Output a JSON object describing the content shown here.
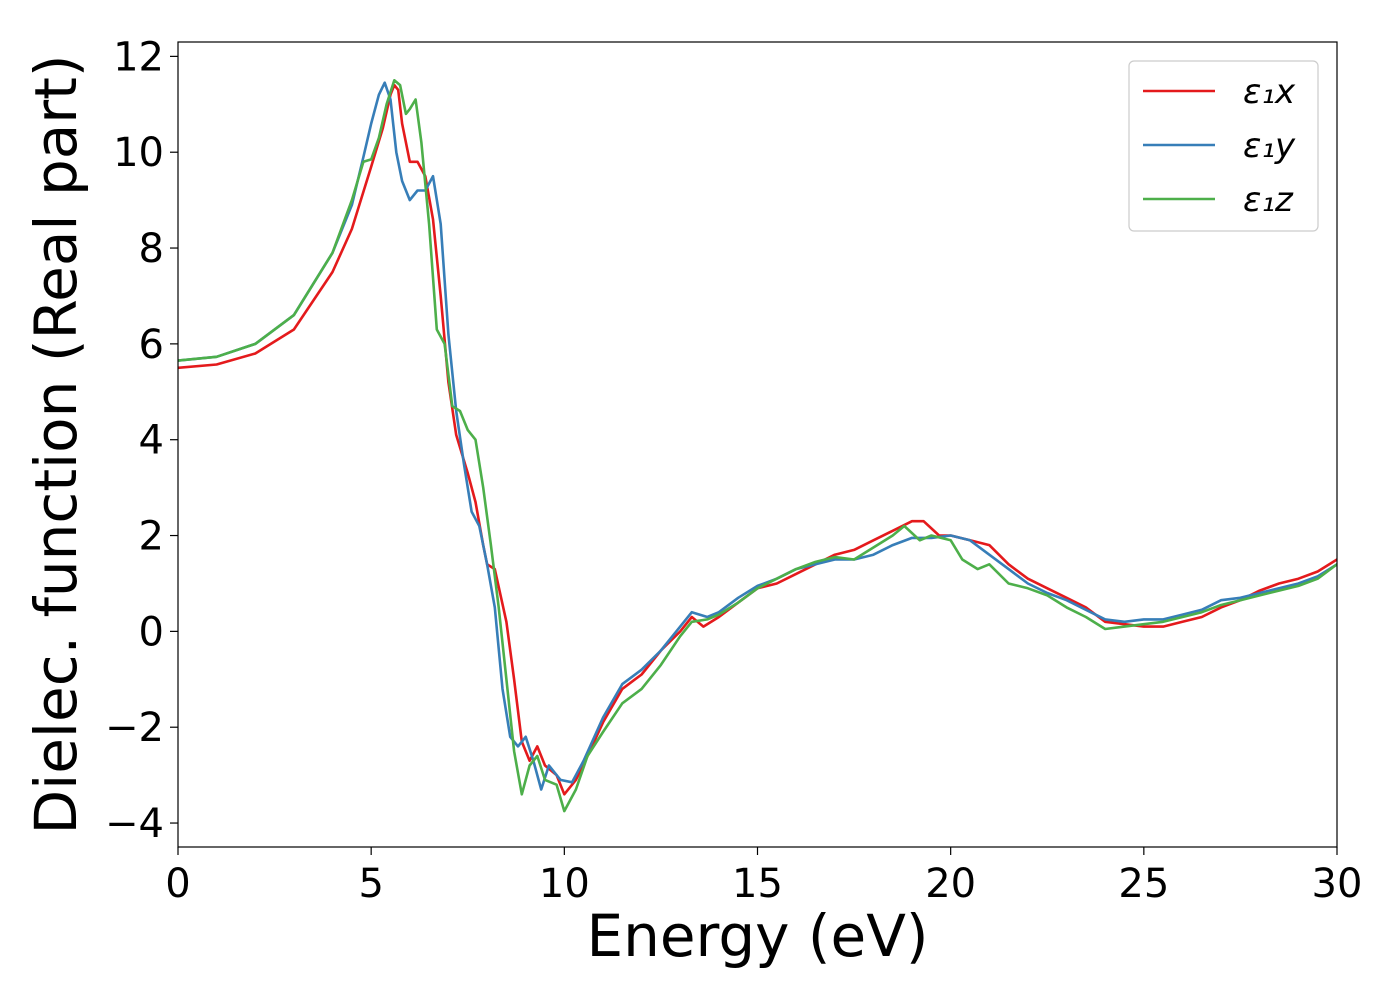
{
  "chart_data": {
    "type": "line",
    "title": "",
    "xlabel": "Energy (eV)",
    "ylabel": "Dielec. function (Real part)",
    "xlim": [
      0,
      30
    ],
    "ylim": [
      -4.5,
      12.3
    ],
    "xticks": [
      0,
      5,
      10,
      15,
      20,
      25,
      30
    ],
    "xtick_labels": [
      "0",
      "5",
      "10",
      "15",
      "20",
      "25",
      "30"
    ],
    "yticks": [
      -4,
      -2,
      0,
      2,
      4,
      6,
      8,
      10,
      12
    ],
    "ytick_labels": [
      "−4",
      "−2",
      "0",
      "2",
      "4",
      "6",
      "8",
      "10",
      "12"
    ],
    "grid": false,
    "legend_position": "top-right",
    "series": [
      {
        "name": "ε₁x",
        "color": "#e41a1c",
        "points": [
          [
            0,
            5.5
          ],
          [
            1,
            5.57
          ],
          [
            2,
            5.8
          ],
          [
            3,
            6.3
          ],
          [
            4,
            7.5
          ],
          [
            4.5,
            8.4
          ],
          [
            5,
            9.7
          ],
          [
            5.3,
            10.5
          ],
          [
            5.5,
            11.2
          ],
          [
            5.6,
            11.4
          ],
          [
            5.7,
            11.3
          ],
          [
            5.8,
            10.6
          ],
          [
            6,
            9.8
          ],
          [
            6.2,
            9.8
          ],
          [
            6.4,
            9.5
          ],
          [
            6.6,
            8.6
          ],
          [
            6.8,
            7.0
          ],
          [
            7,
            5.2
          ],
          [
            7.2,
            4.1
          ],
          [
            7.5,
            3.3
          ],
          [
            7.7,
            2.7
          ],
          [
            7.9,
            1.8
          ],
          [
            8.0,
            1.4
          ],
          [
            8.2,
            1.3
          ],
          [
            8.5,
            0.2
          ],
          [
            8.7,
            -1.0
          ],
          [
            8.9,
            -2.3
          ],
          [
            9.1,
            -2.7
          ],
          [
            9.3,
            -2.4
          ],
          [
            9.5,
            -2.8
          ],
          [
            9.8,
            -3.0
          ],
          [
            10,
            -3.4
          ],
          [
            10.3,
            -3.1
          ],
          [
            10.6,
            -2.6
          ],
          [
            11,
            -1.9
          ],
          [
            11.5,
            -1.2
          ],
          [
            12,
            -0.9
          ],
          [
            12.5,
            -0.4
          ],
          [
            13,
            0.0
          ],
          [
            13.3,
            0.3
          ],
          [
            13.6,
            0.1
          ],
          [
            14,
            0.3
          ],
          [
            14.5,
            0.6
          ],
          [
            15,
            0.9
          ],
          [
            15.5,
            1.0
          ],
          [
            16,
            1.2
          ],
          [
            16.5,
            1.4
          ],
          [
            17,
            1.6
          ],
          [
            17.5,
            1.7
          ],
          [
            18,
            1.9
          ],
          [
            18.5,
            2.1
          ],
          [
            19,
            2.3
          ],
          [
            19.3,
            2.3
          ],
          [
            19.7,
            2.0
          ],
          [
            20,
            2.0
          ],
          [
            20.5,
            1.9
          ],
          [
            21,
            1.8
          ],
          [
            21.5,
            1.4
          ],
          [
            22,
            1.1
          ],
          [
            22.5,
            0.9
          ],
          [
            23,
            0.7
          ],
          [
            23.5,
            0.5
          ],
          [
            24,
            0.2
          ],
          [
            24.5,
            0.15
          ],
          [
            25,
            0.1
          ],
          [
            25.5,
            0.1
          ],
          [
            26,
            0.2
          ],
          [
            26.5,
            0.3
          ],
          [
            27,
            0.5
          ],
          [
            27.5,
            0.65
          ],
          [
            28,
            0.85
          ],
          [
            28.5,
            1.0
          ],
          [
            29,
            1.1
          ],
          [
            29.5,
            1.25
          ],
          [
            30,
            1.5
          ]
        ]
      },
      {
        "name": "ε₁y",
        "color": "#377eb8",
        "points": [
          [
            0,
            5.65
          ],
          [
            1,
            5.73
          ],
          [
            2,
            6.0
          ],
          [
            3,
            6.6
          ],
          [
            4,
            7.9
          ],
          [
            4.5,
            8.9
          ],
          [
            4.8,
            9.9
          ],
          [
            5,
            10.6
          ],
          [
            5.2,
            11.2
          ],
          [
            5.35,
            11.45
          ],
          [
            5.5,
            11.1
          ],
          [
            5.65,
            10.0
          ],
          [
            5.8,
            9.4
          ],
          [
            6,
            9.0
          ],
          [
            6.2,
            9.2
          ],
          [
            6.4,
            9.2
          ],
          [
            6.6,
            9.5
          ],
          [
            6.8,
            8.5
          ],
          [
            7,
            6.2
          ],
          [
            7.2,
            4.6
          ],
          [
            7.4,
            3.5
          ],
          [
            7.6,
            2.5
          ],
          [
            7.8,
            2.2
          ],
          [
            8.0,
            1.4
          ],
          [
            8.2,
            0.5
          ],
          [
            8.4,
            -1.2
          ],
          [
            8.6,
            -2.2
          ],
          [
            8.8,
            -2.4
          ],
          [
            9.0,
            -2.2
          ],
          [
            9.2,
            -2.7
          ],
          [
            9.4,
            -3.3
          ],
          [
            9.6,
            -2.8
          ],
          [
            9.9,
            -3.1
          ],
          [
            10.2,
            -3.15
          ],
          [
            10.5,
            -2.7
          ],
          [
            11,
            -1.8
          ],
          [
            11.5,
            -1.1
          ],
          [
            12,
            -0.8
          ],
          [
            12.5,
            -0.4
          ],
          [
            13,
            0.1
          ],
          [
            13.3,
            0.4
          ],
          [
            13.7,
            0.3
          ],
          [
            14,
            0.4
          ],
          [
            14.5,
            0.7
          ],
          [
            15,
            0.95
          ],
          [
            15.5,
            1.1
          ],
          [
            16,
            1.3
          ],
          [
            16.5,
            1.4
          ],
          [
            17,
            1.5
          ],
          [
            17.5,
            1.5
          ],
          [
            18,
            1.6
          ],
          [
            18.5,
            1.8
          ],
          [
            19,
            1.95
          ],
          [
            19.5,
            1.95
          ],
          [
            20,
            2.0
          ],
          [
            20.5,
            1.9
          ],
          [
            21,
            1.6
          ],
          [
            21.5,
            1.3
          ],
          [
            22,
            1.0
          ],
          [
            22.5,
            0.8
          ],
          [
            23,
            0.65
          ],
          [
            23.5,
            0.45
          ],
          [
            24,
            0.25
          ],
          [
            24.5,
            0.2
          ],
          [
            25,
            0.25
          ],
          [
            25.5,
            0.25
          ],
          [
            26,
            0.35
          ],
          [
            26.5,
            0.45
          ],
          [
            27,
            0.65
          ],
          [
            27.5,
            0.7
          ],
          [
            28,
            0.8
          ],
          [
            28.5,
            0.9
          ],
          [
            29,
            1.0
          ],
          [
            29.5,
            1.15
          ],
          [
            30,
            1.4
          ]
        ]
      },
      {
        "name": "ε₁z",
        "color": "#4daf4a",
        "points": [
          [
            0,
            5.65
          ],
          [
            1,
            5.73
          ],
          [
            2,
            6.0
          ],
          [
            3,
            6.6
          ],
          [
            4,
            7.9
          ],
          [
            4.5,
            9.0
          ],
          [
            4.8,
            9.8
          ],
          [
            5,
            9.85
          ],
          [
            5.2,
            10.3
          ],
          [
            5.4,
            11.0
          ],
          [
            5.6,
            11.5
          ],
          [
            5.75,
            11.4
          ],
          [
            5.9,
            10.8
          ],
          [
            6.0,
            10.9
          ],
          [
            6.15,
            11.1
          ],
          [
            6.3,
            10.2
          ],
          [
            6.5,
            8.5
          ],
          [
            6.7,
            6.3
          ],
          [
            6.9,
            6.0
          ],
          [
            7.1,
            4.7
          ],
          [
            7.3,
            4.6
          ],
          [
            7.5,
            4.2
          ],
          [
            7.7,
            4.0
          ],
          [
            7.9,
            3.0
          ],
          [
            8.1,
            1.8
          ],
          [
            8.3,
            0.5
          ],
          [
            8.5,
            -1.0
          ],
          [
            8.7,
            -2.5
          ],
          [
            8.9,
            -3.4
          ],
          [
            9.1,
            -2.8
          ],
          [
            9.3,
            -2.6
          ],
          [
            9.5,
            -3.1
          ],
          [
            9.8,
            -3.2
          ],
          [
            10,
            -3.75
          ],
          [
            10.3,
            -3.3
          ],
          [
            10.6,
            -2.6
          ],
          [
            11,
            -2.1
          ],
          [
            11.5,
            -1.5
          ],
          [
            12,
            -1.2
          ],
          [
            12.5,
            -0.7
          ],
          [
            13,
            -0.1
          ],
          [
            13.3,
            0.2
          ],
          [
            13.7,
            0.25
          ],
          [
            14,
            0.35
          ],
          [
            14.5,
            0.6
          ],
          [
            15,
            0.9
          ],
          [
            15.5,
            1.1
          ],
          [
            16,
            1.3
          ],
          [
            16.5,
            1.45
          ],
          [
            17,
            1.55
          ],
          [
            17.5,
            1.5
          ],
          [
            18,
            1.75
          ],
          [
            18.5,
            2.0
          ],
          [
            18.8,
            2.2
          ],
          [
            19.2,
            1.9
          ],
          [
            19.5,
            2.0
          ],
          [
            20,
            1.9
          ],
          [
            20.3,
            1.5
          ],
          [
            20.7,
            1.3
          ],
          [
            21,
            1.4
          ],
          [
            21.5,
            1.0
          ],
          [
            22,
            0.9
          ],
          [
            22.5,
            0.75
          ],
          [
            23,
            0.5
          ],
          [
            23.5,
            0.3
          ],
          [
            24,
            0.05
          ],
          [
            24.5,
            0.1
          ],
          [
            25,
            0.15
          ],
          [
            25.5,
            0.2
          ],
          [
            26,
            0.3
          ],
          [
            26.5,
            0.4
          ],
          [
            27,
            0.55
          ],
          [
            27.5,
            0.65
          ],
          [
            28,
            0.75
          ],
          [
            28.5,
            0.85
          ],
          [
            29,
            0.95
          ],
          [
            29.5,
            1.1
          ],
          [
            30,
            1.4
          ]
        ]
      }
    ]
  }
}
